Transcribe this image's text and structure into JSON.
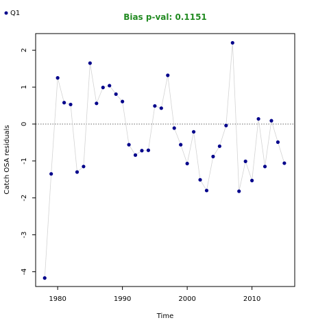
{
  "chart_data": {
    "type": "scatter",
    "title": "Bias p-val: 0.1151",
    "title_color": "#228B22",
    "xlabel": "Time",
    "ylabel": "Catch OSA residuals",
    "xlim": [
      1976.6,
      2016.6
    ],
    "ylim": [
      -4.4,
      2.45
    ],
    "xticks": [
      1980,
      1990,
      2000,
      2010
    ],
    "yticks": [
      2,
      1,
      0,
      -1,
      -2,
      -3,
      -4
    ],
    "reference_line": 0,
    "grid": false,
    "legend": {
      "position": "top-left",
      "entries": [
        "Q1"
      ]
    },
    "series": [
      {
        "name": "Q1",
        "marker_color": "#00008B",
        "line_color": "#D3D3D3",
        "x": [
          1978,
          1979,
          1980,
          1981,
          1982,
          1983,
          1984,
          1985,
          1986,
          1987,
          1988,
          1989,
          1990,
          1991,
          1992,
          1993,
          1994,
          1995,
          1996,
          1997,
          1998,
          1999,
          2000,
          2001,
          2002,
          2003,
          2004,
          2005,
          2006,
          2007,
          2008,
          2009,
          2010,
          2011,
          2012,
          2013,
          2014,
          2015
        ],
        "y": [
          -4.17,
          -1.35,
          1.25,
          0.58,
          0.53,
          -1.3,
          -1.15,
          1.65,
          0.56,
          0.99,
          1.04,
          0.81,
          0.61,
          -0.56,
          -0.84,
          -0.72,
          -0.71,
          0.49,
          0.43,
          1.32,
          -0.11,
          -0.56,
          -1.07,
          -0.21,
          -1.51,
          -1.8,
          -0.88,
          -0.6,
          -0.04,
          2.2,
          -1.82,
          -1.01,
          -1.53,
          0.14,
          -1.15,
          0.09,
          -0.49,
          -1.06
        ]
      }
    ]
  }
}
